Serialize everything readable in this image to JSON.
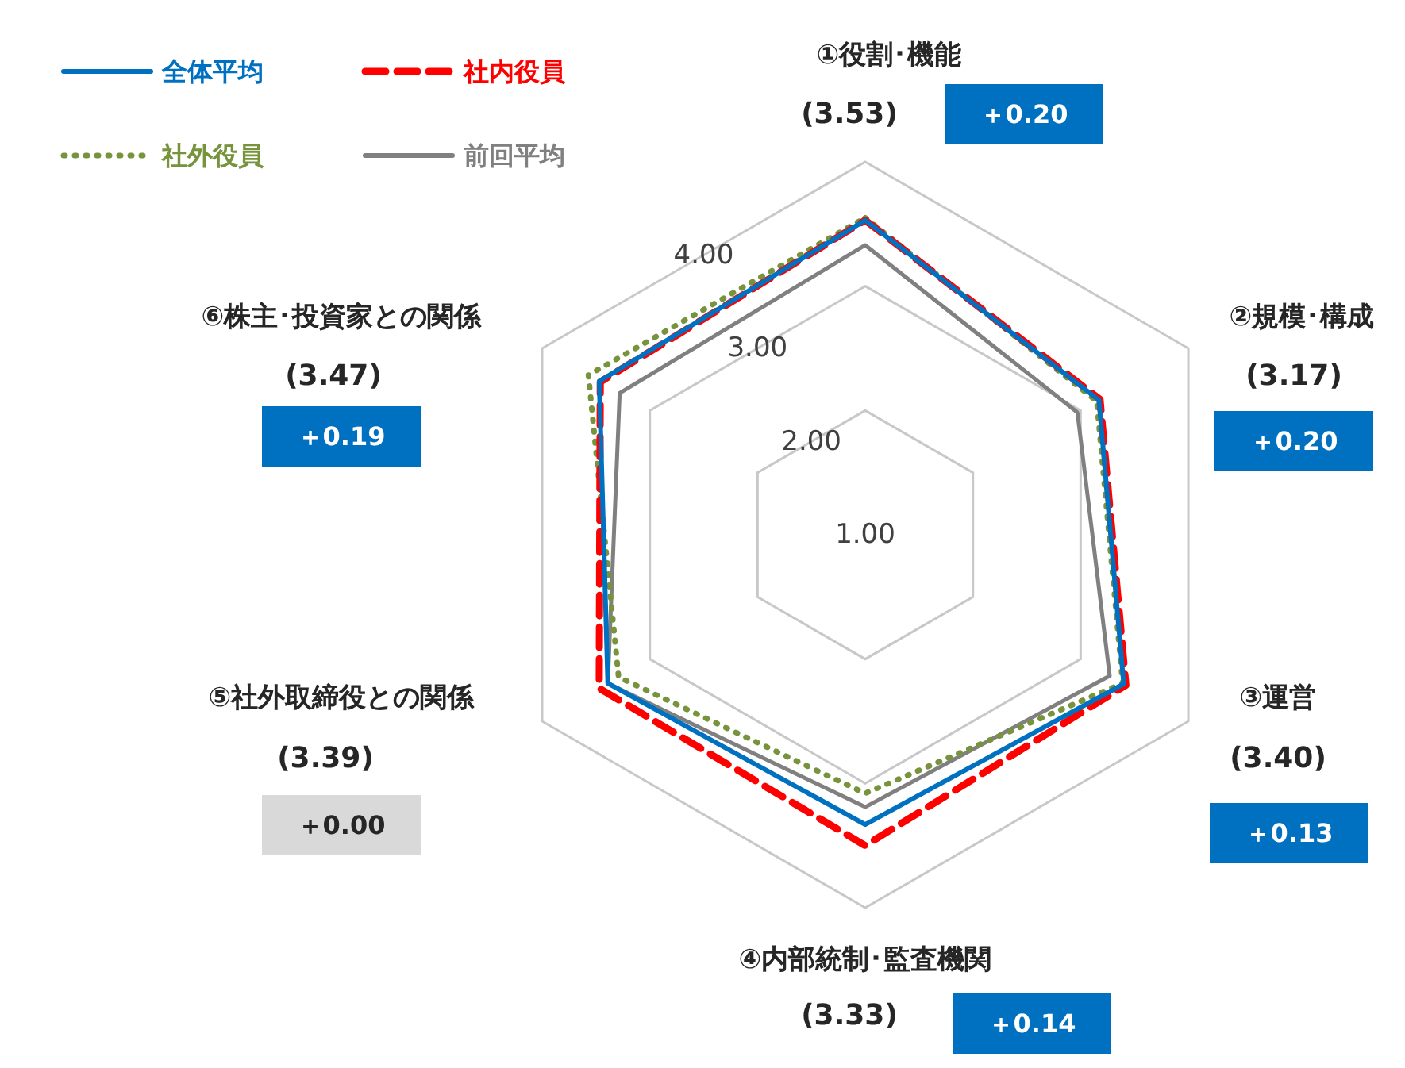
{
  "chart_data": {
    "type": "radar",
    "categories": [
      "①役割･機能",
      "②規模･構成",
      "③運営",
      "④内部統制･監査機関",
      "⑤社外取締役との関係",
      "⑥株主･投資家との関係"
    ],
    "series": [
      {
        "name": "全体平均",
        "color": "#0070c0",
        "line_style": "solid",
        "values": [
          3.53,
          3.17,
          3.4,
          3.33,
          3.39,
          3.47
        ]
      },
      {
        "name": "社内役員",
        "color": "#ff0000",
        "line_style": "dashed",
        "values": [
          3.53,
          3.18,
          3.42,
          3.5,
          3.47,
          3.46
        ]
      },
      {
        "name": "社外役員",
        "color": "#77933c",
        "line_style": "dotted",
        "values": [
          3.55,
          3.15,
          3.39,
          3.08,
          3.29,
          3.57
        ]
      },
      {
        "name": "前回平均",
        "color": "#808080",
        "line_style": "solid",
        "values": [
          3.33,
          2.97,
          3.27,
          3.19,
          3.39,
          3.28
        ]
      }
    ],
    "ylim": [
      1,
      4
    ],
    "yticks": [
      {
        "value": 1,
        "label": "1.00"
      },
      {
        "value": 2,
        "label": "2.00"
      },
      {
        "value": 3,
        "label": "3.00"
      },
      {
        "value": 4,
        "label": "4.00"
      }
    ],
    "grid": true,
    "legend": "top left",
    "annotations": [
      "(3.53)",
      "＋0.20",
      "(3.17)",
      "＋0.20",
      "(3.40)",
      "＋0.13",
      "(3.33)",
      "＋0.14",
      "(3.39)",
      "＋0.00",
      "(3.47)",
      "＋0.19"
    ]
  }
}
